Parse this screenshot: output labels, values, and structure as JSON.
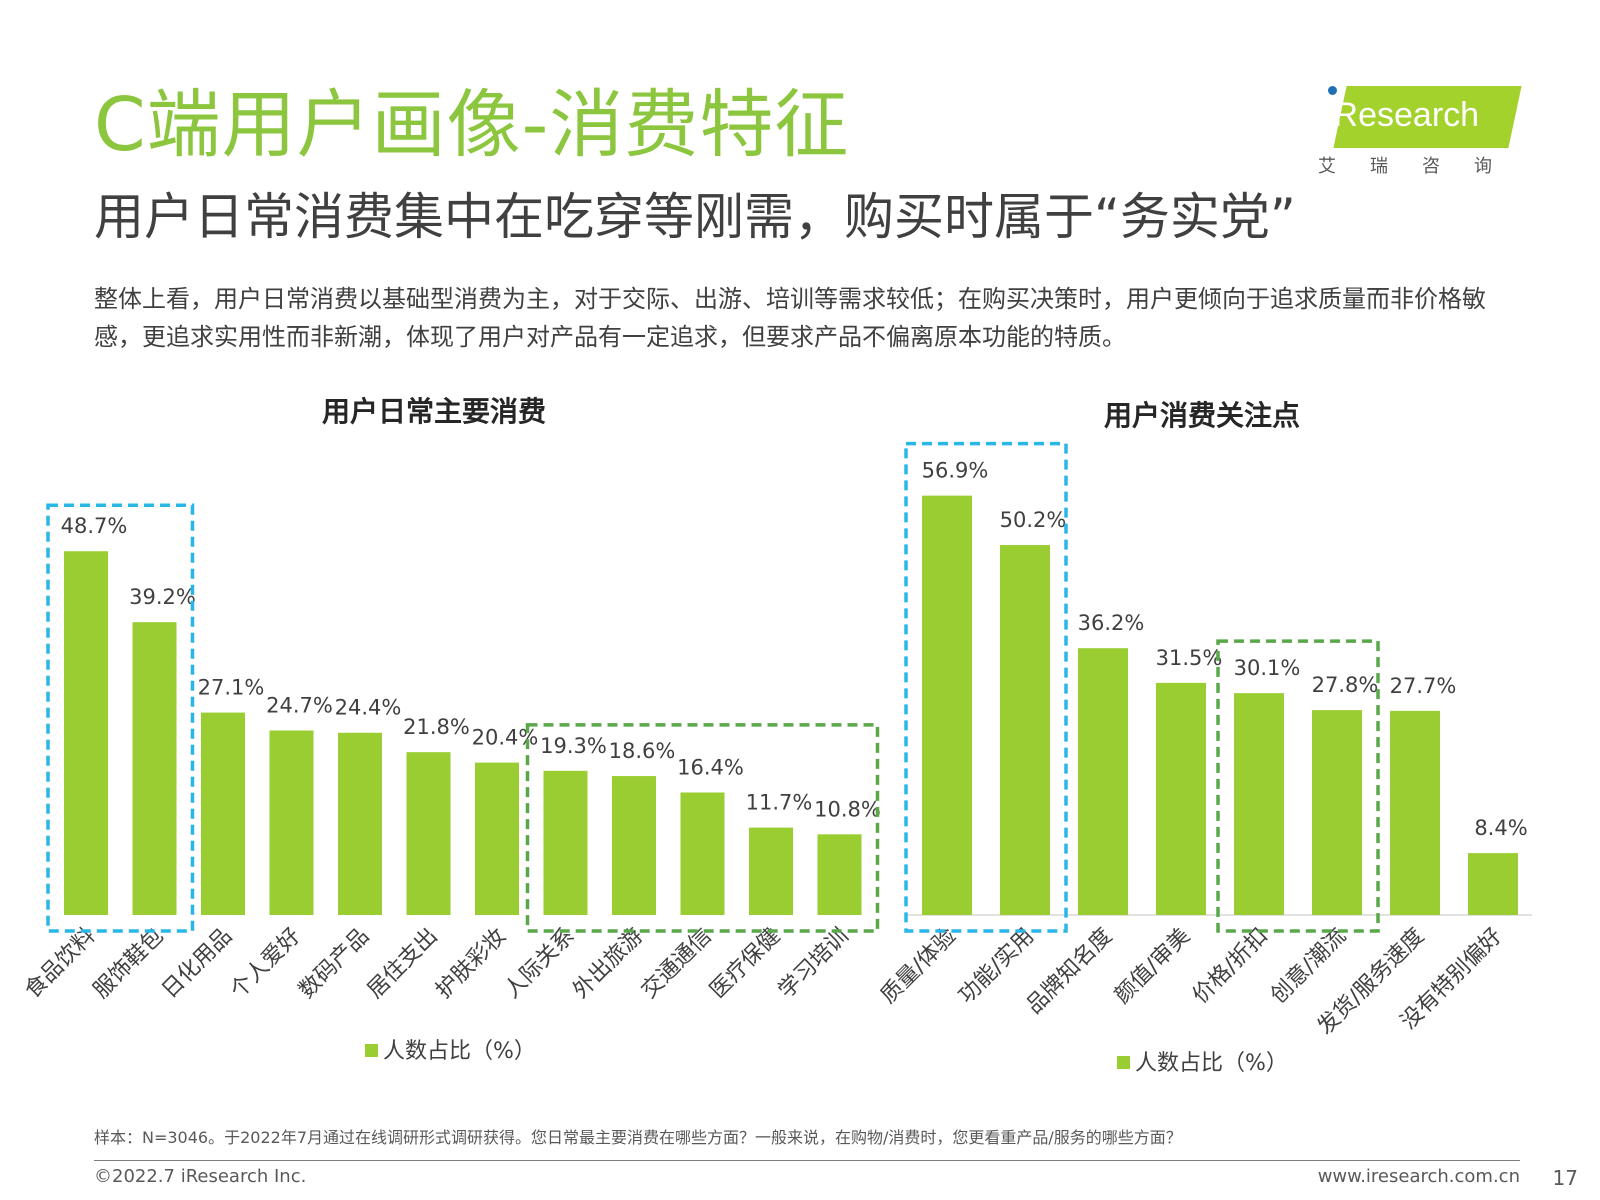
{
  "header": {
    "title": "C端用户画像-消费特征",
    "subtitle": "用户日常消费集中在吃穿等刚需，购买时属于“务实党”",
    "description": "整体上看，用户日常消费以基础型消费为主，对于交际、出游、培训等需求较低；在购买决策时，用户更倾向于追求质量而非价格敏感，更追求实用性而非新潮，体现了用户对产品有一定追求，但要求产品不偏离原本功能的特质。"
  },
  "logo": {
    "brand": "iResearch",
    "subtext": "艾瑞咨询"
  },
  "colors": {
    "bar": "#9acd32",
    "highlight_blue": "#29b6e8",
    "highlight_green": "#5aa84a",
    "title_green": "#8cc63f"
  },
  "chart_data": [
    {
      "type": "bar",
      "title": "用户日常主要消费",
      "categories": [
        "食品饮料",
        "服饰鞋包",
        "日化用品",
        "个人爱好",
        "数码产品",
        "居住支出",
        "护肤彩妆",
        "人际关系",
        "外出旅游",
        "交通通信",
        "医疗保健",
        "学习培训"
      ],
      "series": [
        {
          "name": "人数占比（%）",
          "values": [
            48.7,
            39.2,
            27.1,
            24.7,
            24.4,
            21.8,
            20.4,
            19.3,
            18.6,
            16.4,
            11.7,
            10.8
          ]
        }
      ],
      "value_labels": [
        "48.7%",
        "39.2%",
        "27.1%",
        "24.7%",
        "24.4%",
        "21.8%",
        "20.4%",
        "19.3%",
        "18.6%",
        "16.4%",
        "11.7%",
        "10.8%"
      ],
      "highlights": [
        {
          "from": 0,
          "to": 1,
          "color": "blue"
        },
        {
          "from": 7,
          "to": 11,
          "color": "green"
        }
      ],
      "legend": "bottom",
      "ylim": [
        0,
        60
      ]
    },
    {
      "type": "bar",
      "title": "用户消费关注点",
      "categories": [
        "质量/体验",
        "功能/实用",
        "品牌知名度",
        "颜值/审美",
        "价格/折扣",
        "创意/潮流",
        "发货/服务速度",
        "没有特别偏好"
      ],
      "series": [
        {
          "name": "人数占比（%）",
          "values": [
            56.9,
            50.2,
            36.2,
            31.5,
            30.1,
            27.8,
            27.7,
            8.4
          ]
        }
      ],
      "value_labels": [
        "56.9%",
        "50.2%",
        "36.2%",
        "31.5%",
        "30.1%",
        "27.8%",
        "27.7%",
        "8.4%"
      ],
      "highlights": [
        {
          "from": 0,
          "to": 1,
          "color": "blue"
        },
        {
          "from": 4,
          "to": 5,
          "color": "green"
        }
      ],
      "legend": "bottom",
      "ylim": [
        0,
        60
      ]
    }
  ],
  "footer": {
    "note": "样本：N=3046。于2022年7月通过在线调研形式调研获得。您日常最主要消费在哪些方面？一般来说，在购物/消费时，您更看重产品/服务的哪些方面？",
    "copyright": "©2022.7 iResearch Inc.",
    "website": "www.iresearch.com.cn",
    "page": "17"
  }
}
